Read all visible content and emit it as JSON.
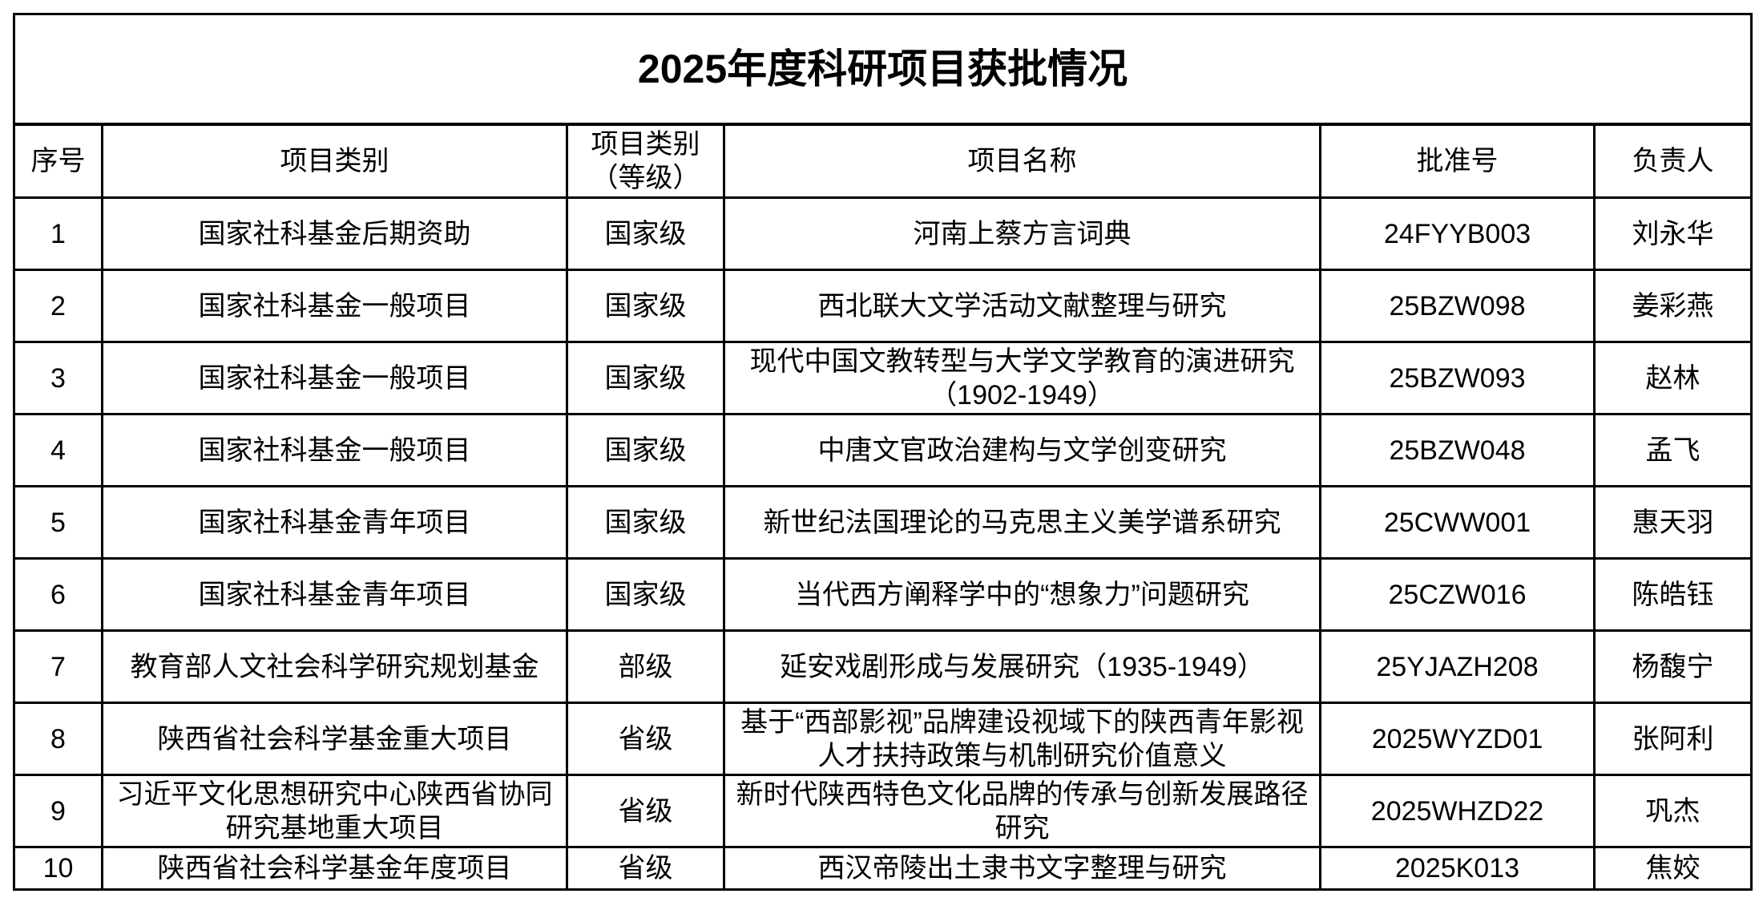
{
  "title": "2025年度科研项目获批情况",
  "headers": [
    "序号",
    "项目类别",
    "项目类别（等级）",
    "项目名称",
    "批准号",
    "负责人"
  ],
  "header_level_lines": [
    "项目类别",
    "（等级）"
  ],
  "rows": [
    {
      "no": "1",
      "category": "国家社科基金后期资助",
      "level": "国家级",
      "name": "河南上蔡方言词典",
      "code": "24FYYB003",
      "leader": "刘永华"
    },
    {
      "no": "2",
      "category": "国家社科基金一般项目",
      "level": "国家级",
      "name": "西北联大文学活动文献整理与研究",
      "code": "25BZW098",
      "leader": "姜彩燕"
    },
    {
      "no": "3",
      "category": "国家社科基金一般项目",
      "level": "国家级",
      "name": "现代中国文教转型与大学文学教育的演进研究（1902-1949）",
      "code": "25BZW093",
      "leader": "赵林"
    },
    {
      "no": "4",
      "category": "国家社科基金一般项目",
      "level": "国家级",
      "name": "中唐文官政治建构与文学创变研究",
      "code": "25BZW048",
      "leader": "孟飞"
    },
    {
      "no": "5",
      "category": "国家社科基金青年项目",
      "level": "国家级",
      "name": "新世纪法国理论的马克思主义美学谱系研究",
      "code": "25CWW001",
      "leader": "惠天羽"
    },
    {
      "no": "6",
      "category": "国家社科基金青年项目",
      "level": "国家级",
      "name": "当代西方阐释学中的“想象力”问题研究",
      "code": "25CZW016",
      "leader": "陈皓钰"
    },
    {
      "no": "7",
      "category": "教育部人文社会科学研究规划基金",
      "level": "部级",
      "name": "延安戏剧形成与发展研究（1935-1949）",
      "code": "25YJAZH208",
      "leader": "杨馥宁"
    },
    {
      "no": "8",
      "category": "陕西省社会科学基金重大项目",
      "level": "省级",
      "name": "基于“西部影视”品牌建设视域下的陕西青年影视人才扶持政策与机制研究价值意义",
      "code": "2025WYZD01",
      "leader": "张阿利"
    },
    {
      "no": "9",
      "category": "习近平文化思想研究中心陕西省协同研究基地重大项目",
      "level": "省级",
      "name": "新时代陕西特色文化品牌的传承与创新发展路径研究",
      "code": "2025WHZD22",
      "leader": "巩杰"
    },
    {
      "no": "10",
      "category": "陕西省社会科学基金年度项目",
      "level": "省级",
      "name": "西汉帝陵出土隶书文字整理与研究",
      "code": "2025K013",
      "leader": "焦姣"
    }
  ]
}
